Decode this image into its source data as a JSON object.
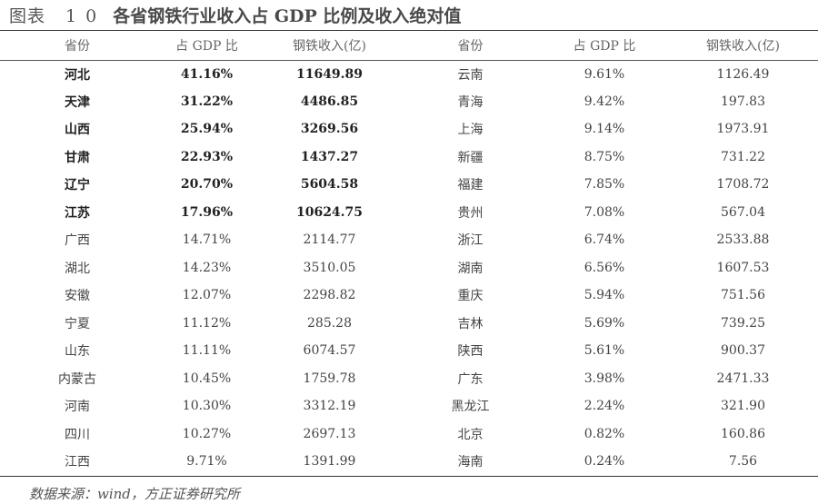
{
  "title": {
    "label": "图表",
    "number": "10",
    "name": "各省钢铁行业收入占 GDP 比例及收入绝对值"
  },
  "columns": [
    "省份",
    "占 GDP 比",
    "钢铁收入(亿)",
    "省份",
    "占 GDP 比",
    "钢铁收入(亿)"
  ],
  "rows": [
    {
      "left": {
        "province": "河北",
        "ratio": "41.16%",
        "income": "11649.89"
      },
      "right": {
        "province": "云南",
        "ratio": "9.61%",
        "income": "1126.49"
      },
      "bold": true
    },
    {
      "left": {
        "province": "天津",
        "ratio": "31.22%",
        "income": "4486.85"
      },
      "right": {
        "province": "青海",
        "ratio": "9.42%",
        "income": "197.83"
      },
      "bold": true
    },
    {
      "left": {
        "province": "山西",
        "ratio": "25.94%",
        "income": "3269.56"
      },
      "right": {
        "province": "上海",
        "ratio": "9.14%",
        "income": "1973.91"
      },
      "bold": true
    },
    {
      "left": {
        "province": "甘肃",
        "ratio": "22.93%",
        "income": "1437.27"
      },
      "right": {
        "province": "新疆",
        "ratio": "8.75%",
        "income": "731.22"
      },
      "bold": true
    },
    {
      "left": {
        "province": "辽宁",
        "ratio": "20.70%",
        "income": "5604.58"
      },
      "right": {
        "province": "福建",
        "ratio": "7.85%",
        "income": "1708.72"
      },
      "bold": true
    },
    {
      "left": {
        "province": "江苏",
        "ratio": "17.96%",
        "income": "10624.75"
      },
      "right": {
        "province": "贵州",
        "ratio": "7.08%",
        "income": "567.04"
      },
      "bold": true
    },
    {
      "left": {
        "province": "广西",
        "ratio": "14.71%",
        "income": "2114.77"
      },
      "right": {
        "province": "浙江",
        "ratio": "6.74%",
        "income": "2533.88"
      },
      "bold": false
    },
    {
      "left": {
        "province": "湖北",
        "ratio": "14.23%",
        "income": "3510.05"
      },
      "right": {
        "province": "湖南",
        "ratio": "6.56%",
        "income": "1607.53"
      },
      "bold": false
    },
    {
      "left": {
        "province": "安徽",
        "ratio": "12.07%",
        "income": "2298.82"
      },
      "right": {
        "province": "重庆",
        "ratio": "5.94%",
        "income": "751.56"
      },
      "bold": false
    },
    {
      "left": {
        "province": "宁夏",
        "ratio": "11.12%",
        "income": "285.28"
      },
      "right": {
        "province": "吉林",
        "ratio": "5.69%",
        "income": "739.25"
      },
      "bold": false
    },
    {
      "left": {
        "province": "山东",
        "ratio": "11.11%",
        "income": "6074.57"
      },
      "right": {
        "province": "陕西",
        "ratio": "5.61%",
        "income": "900.37"
      },
      "bold": false
    },
    {
      "left": {
        "province": "内蒙古",
        "ratio": "10.45%",
        "income": "1759.78"
      },
      "right": {
        "province": "广东",
        "ratio": "3.98%",
        "income": "2471.33"
      },
      "bold": false
    },
    {
      "left": {
        "province": "河南",
        "ratio": "10.30%",
        "income": "3312.19"
      },
      "right": {
        "province": "黑龙江",
        "ratio": "2.24%",
        "income": "321.90"
      },
      "bold": false
    },
    {
      "left": {
        "province": "四川",
        "ratio": "10.27%",
        "income": "2697.13"
      },
      "right": {
        "province": "北京",
        "ratio": "0.82%",
        "income": "160.86"
      },
      "bold": false
    },
    {
      "left": {
        "province": "江西",
        "ratio": "9.71%",
        "income": "1391.99"
      },
      "right": {
        "province": "海南",
        "ratio": "0.24%",
        "income": "7.56"
      },
      "bold": false
    }
  ],
  "source": "数据来源：wind，方正证券研究所"
}
